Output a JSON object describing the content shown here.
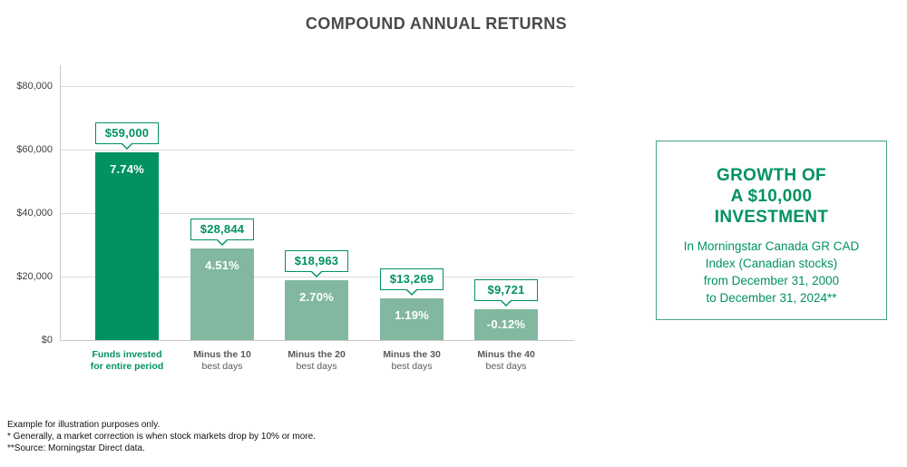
{
  "title": "COMPOUND ANNUAL RETURNS",
  "chart_data": {
    "type": "bar",
    "title": "COMPOUND ANNUAL RETURNS",
    "categories": [
      "Funds invested for entire period",
      "Minus the 10 best days",
      "Minus the 20 best days",
      "Minus the 30 best days",
      "Minus the 40 best days"
    ],
    "values": [
      59000,
      28844,
      18963,
      13269,
      9721
    ],
    "value_labels": [
      "$59,000",
      "$28,844",
      "$18,963",
      "$13,269",
      "$9,721"
    ],
    "annual_returns": [
      "7.74%",
      "4.51%",
      "2.70%",
      "1.19%",
      "-0.12%"
    ],
    "xlabel": "",
    "ylabel": "",
    "ylim": [
      0,
      80000
    ],
    "yticks": [
      "$0",
      "$20,000",
      "$40,000",
      "$60,000",
      "$80,000"
    ],
    "grid": true,
    "legend": "none",
    "bar_colors": [
      "#009260",
      "#82b8a0",
      "#82b8a0",
      "#82b8a0",
      "#82b8a0"
    ]
  },
  "bars": [
    {
      "amount": "$59,000",
      "pct": "7.74%",
      "cat1": "Funds invested",
      "cat2": "for entire period"
    },
    {
      "amount": "$28,844",
      "pct": "4.51%",
      "cat1": "Minus the 10",
      "cat2": "best days"
    },
    {
      "amount": "$18,963",
      "pct": "2.70%",
      "cat1": "Minus the 20",
      "cat2": "best days"
    },
    {
      "amount": "$13,269",
      "pct": "1.19%",
      "cat1": "Minus the 30",
      "cat2": "best days"
    },
    {
      "amount": "$9,721",
      "pct": "-0.12%",
      "cat1": "Minus the 40",
      "cat2": "best days"
    }
  ],
  "yticks_top_down": [
    "$80,000",
    "$60,000",
    "$40,000",
    "$20,000",
    "$0"
  ],
  "info_box": {
    "heading_lines": [
      "GROWTH OF",
      "A $10,000",
      "INVESTMENT"
    ],
    "body_lines": [
      "In Morningstar Canada GR CAD",
      "Index (Canadian stocks)",
      "from December 31, 2000",
      "to December 31, 2024**"
    ]
  },
  "footnotes": [
    "Example for illustration purposes only.",
    "* Generally, a market correction is when stock markets drop by 10% or more.",
    "**Source: Morningstar Direct data."
  ],
  "colors": {
    "green": "#009260",
    "sage": "#82b8a0",
    "box_border": "#44a57f",
    "title_gray": "#4a4a4c",
    "label_gray": "#58595b",
    "label_dark": "#414042",
    "grid_line": "#dcdcdc",
    "axis_line": "#c9c9c9"
  }
}
